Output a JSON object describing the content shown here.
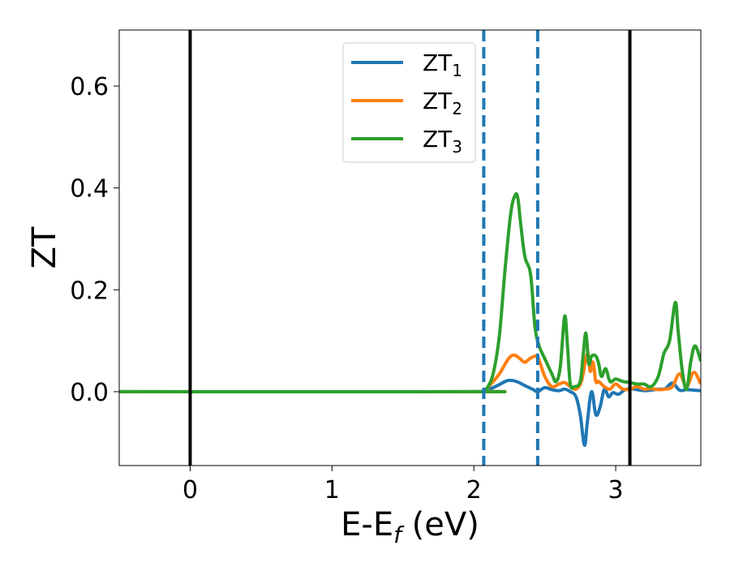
{
  "chart_data": {
    "type": "line",
    "title": "",
    "xlabel_main": "E-E",
    "xlabel_sub": "f",
    "xlabel_unit": " (eV)",
    "ylabel": "ZT",
    "xlim": [
      -0.5,
      3.6
    ],
    "ylim": [
      -0.145,
      0.71
    ],
    "xticks": [
      0,
      1,
      2,
      3
    ],
    "xtick_labels": [
      "0",
      "1",
      "2",
      "3"
    ],
    "yticks": [
      0.0,
      0.2,
      0.4,
      0.6
    ],
    "ytick_labels": [
      "0.0",
      "0.2",
      "0.4",
      "0.6"
    ],
    "grid": false,
    "legend_position": "top-center",
    "vlines_solid": [
      0.0,
      3.1
    ],
    "vlines_dashed": [
      2.07,
      2.45
    ],
    "series": [
      {
        "name": "ZT",
        "name_sub": "1",
        "color": "#1f77b4",
        "x": [
          -0.5,
          2.0,
          2.07,
          2.12,
          2.18,
          2.24,
          2.3,
          2.36,
          2.42,
          2.45,
          2.5,
          2.55,
          2.6,
          2.64,
          2.68,
          2.72,
          2.75,
          2.78,
          2.8,
          2.83,
          2.86,
          2.89,
          2.92,
          2.95,
          2.98,
          3.02,
          3.06,
          3.1,
          3.15,
          3.2,
          3.25,
          3.3,
          3.35,
          3.4,
          3.45,
          3.5,
          3.55,
          3.6
        ],
        "y": [
          0.0,
          0.0,
          0.001,
          0.006,
          0.014,
          0.022,
          0.02,
          0.012,
          0.004,
          0.0,
          0.008,
          0.004,
          0.002,
          0.005,
          0.0,
          -0.01,
          -0.045,
          -0.105,
          -0.06,
          0.0,
          -0.045,
          -0.03,
          0.005,
          -0.01,
          -0.002,
          -0.005,
          0.003,
          0.006,
          0.004,
          0.002,
          0.003,
          0.005,
          0.006,
          0.017,
          0.003,
          0.004,
          0.003,
          0.002
        ]
      },
      {
        "name": "ZT",
        "name_sub": "2",
        "color": "#ff7f0e",
        "x": [
          -0.5,
          2.0,
          2.07,
          2.12,
          2.18,
          2.24,
          2.28,
          2.32,
          2.36,
          2.4,
          2.45,
          2.5,
          2.55,
          2.6,
          2.64,
          2.68,
          2.72,
          2.76,
          2.8,
          2.82,
          2.84,
          2.86,
          2.88,
          2.92,
          2.96,
          3.0,
          3.05,
          3.1,
          3.15,
          3.2,
          3.25,
          3.3,
          3.35,
          3.4,
          3.45,
          3.5,
          3.55,
          3.6
        ],
        "y": [
          0.0,
          0.0,
          0.002,
          0.015,
          0.035,
          0.063,
          0.072,
          0.066,
          0.058,
          0.066,
          0.067,
          0.03,
          0.01,
          0.015,
          0.018,
          0.01,
          0.005,
          0.022,
          0.075,
          0.04,
          0.058,
          0.02,
          0.02,
          0.01,
          0.005,
          0.015,
          0.005,
          0.005,
          0.01,
          0.005,
          0.006,
          0.004,
          0.005,
          0.01,
          0.035,
          0.01,
          0.038,
          0.015
        ]
      },
      {
        "name": "ZT",
        "name_sub": "3",
        "color": "#2ca02c",
        "x": [
          -0.5,
          2.0,
          2.06,
          2.1,
          2.14,
          2.18,
          2.22,
          2.26,
          2.29,
          2.31,
          2.33,
          2.36,
          2.4,
          2.43,
          2.46,
          2.5,
          2.55,
          2.58,
          2.61,
          2.64,
          2.66,
          2.68,
          2.71,
          2.75,
          2.77,
          2.79,
          2.81,
          2.83,
          2.86,
          2.88,
          2.9,
          2.93,
          2.96,
          3.0,
          3.05,
          3.1,
          3.15,
          3.2,
          3.25,
          3.3,
          3.34,
          3.38,
          3.42,
          3.44,
          3.47,
          3.5,
          3.53,
          3.56,
          3.6
        ],
        "y": [
          0.0,
          0.0,
          0.001,
          0.01,
          0.04,
          0.11,
          0.24,
          0.35,
          0.385,
          0.38,
          0.33,
          0.265,
          0.23,
          0.13,
          0.09,
          0.065,
          0.035,
          0.02,
          0.05,
          0.148,
          0.09,
          0.015,
          0.01,
          0.02,
          0.07,
          0.115,
          0.055,
          0.07,
          0.07,
          0.055,
          0.03,
          0.045,
          0.02,
          0.025,
          0.02,
          0.018,
          0.015,
          0.015,
          0.01,
          0.03,
          0.075,
          0.1,
          0.175,
          0.12,
          0.04,
          0.005,
          0.06,
          0.09,
          0.06
        ]
      }
    ]
  }
}
